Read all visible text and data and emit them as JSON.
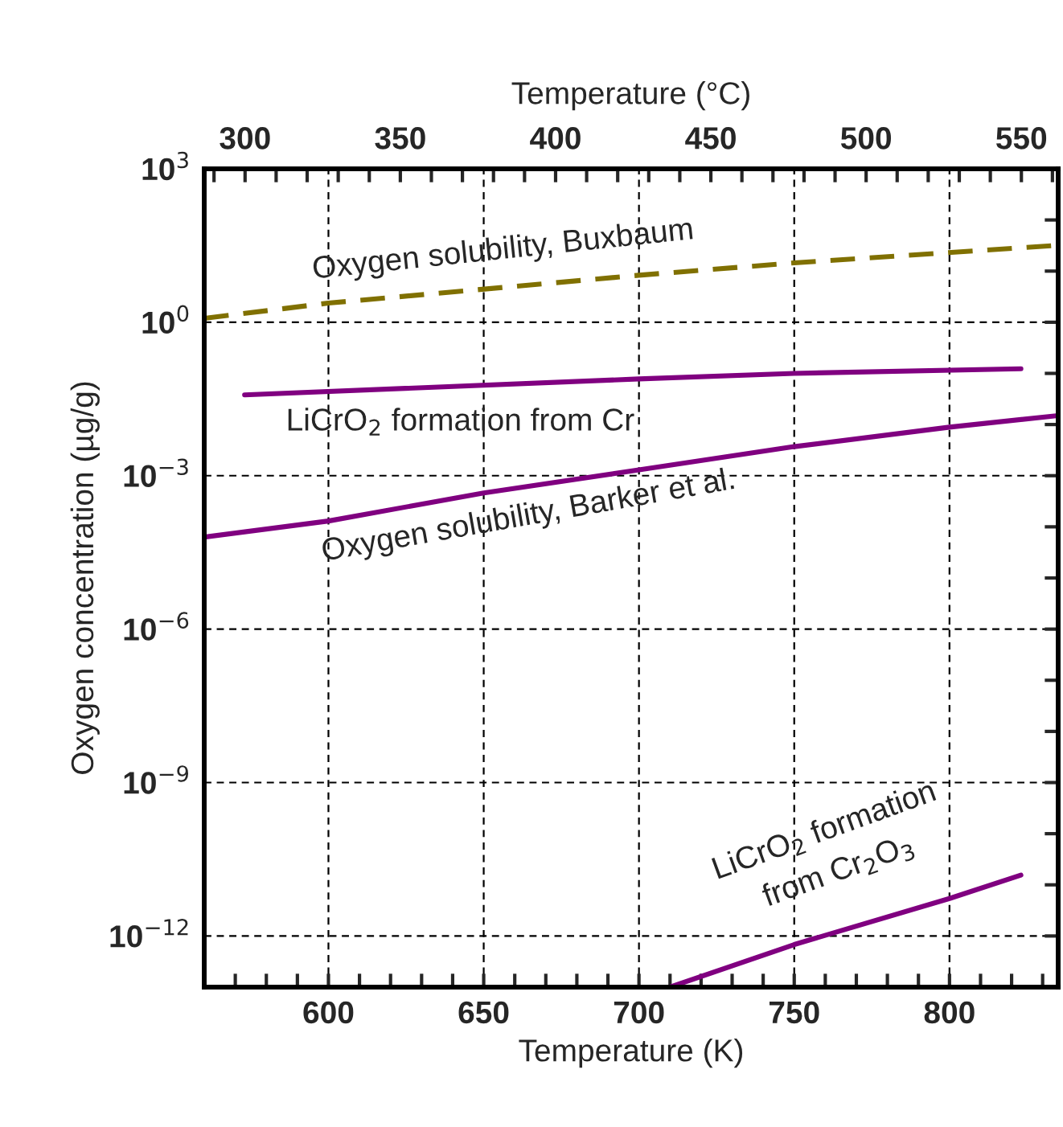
{
  "chart_data": {
    "type": "line",
    "xlabel": "Temperature (K)",
    "ylabel": "Oxygen concentration (µg/g)",
    "x2label": "Temperature (°C)",
    "log": "y",
    "grid": true,
    "legend": false,
    "xlim": [
      560,
      835
    ],
    "ylim": [
      1e-13,
      1000
    ],
    "xticks": [
      {
        "value": 570,
        "label": null
      },
      {
        "value": 580,
        "label": null
      },
      {
        "value": 590,
        "label": null
      },
      600,
      {
        "value": 610,
        "label": null
      },
      {
        "value": 620,
        "label": null
      },
      {
        "value": 630,
        "label": null
      },
      {
        "value": 640,
        "label": null
      },
      650,
      {
        "value": 660,
        "label": null
      },
      {
        "value": 670,
        "label": null
      },
      {
        "value": 680,
        "label": null
      },
      {
        "value": 690,
        "label": null
      },
      700,
      {
        "value": 710,
        "label": null
      },
      {
        "value": 720,
        "label": null
      },
      {
        "value": 730,
        "label": null
      },
      {
        "value": 740,
        "label": null
      },
      750,
      {
        "value": 760,
        "label": null
      },
      {
        "value": 770,
        "label": null
      },
      {
        "value": 780,
        "label": null
      },
      {
        "value": 790,
        "label": null
      },
      800,
      {
        "value": 810,
        "label": null
      },
      {
        "value": 820,
        "label": null
      },
      {
        "value": 830,
        "label": null
      }
    ],
    "x2lim": [
      286.85,
      561.85
    ],
    "x2ticks": [
      {
        "value": 290,
        "label": null
      },
      300,
      {
        "value": 310,
        "label": null
      },
      {
        "value": 320,
        "label": null
      },
      {
        "value": 330,
        "label": null
      },
      {
        "value": 340,
        "label": null
      },
      350,
      {
        "value": 360,
        "label": null
      },
      {
        "value": 370,
        "label": null
      },
      {
        "value": 380,
        "label": null
      },
      {
        "value": 390,
        "label": null
      },
      400,
      {
        "value": 410,
        "label": null
      },
      {
        "value": 420,
        "label": null
      },
      {
        "value": 430,
        "label": null
      },
      {
        "value": 440,
        "label": null
      },
      450,
      {
        "value": 460,
        "label": null
      },
      {
        "value": 470,
        "label": null
      },
      {
        "value": 480,
        "label": null
      },
      {
        "value": 490,
        "label": null
      },
      500,
      {
        "value": 510,
        "label": null
      },
      {
        "value": 520,
        "label": null
      },
      {
        "value": 530,
        "label": null
      },
      {
        "value": 540,
        "label": null
      },
      550,
      {
        "value": 560,
        "label": null
      }
    ],
    "yticks": [
      {
        "value": 1000,
        "label": "10$^{3}$"
      },
      {
        "value": 100,
        "label": null
      },
      {
        "value": 10,
        "label": null
      },
      {
        "value": 1,
        "label": "10$^{0}$"
      },
      {
        "value": 0.1,
        "label": null
      },
      {
        "value": 0.01,
        "label": null
      },
      {
        "value": 0.001,
        "label": "10$^{−3}$"
      },
      {
        "value": 0.0001,
        "label": null
      },
      {
        "value": 1e-05,
        "label": null
      },
      {
        "value": 1e-06,
        "label": "10$^{−6}$"
      },
      {
        "value": 1e-07,
        "label": null
      },
      {
        "value": 1e-08,
        "label": null
      },
      {
        "value": 1e-09,
        "label": "10$^{−9}$"
      },
      {
        "value": 1e-10,
        "label": null
      },
      {
        "value": 1e-11,
        "label": null
      },
      {
        "value": 1e-12,
        "label": "10$^{−12}$"
      }
    ],
    "series": [
      {
        "name": "Oxygen solubility, Buxbaum",
        "color": "#807000",
        "line_style": "dashed",
        "x": [
          560,
          600,
          700,
          750,
          835
        ],
        "values": [
          1.19,
          2.37,
          8.3,
          14.5,
          32
        ]
      },
      {
        "name": "LiCrO$_{2}$ formation from Cr",
        "color": "#800080",
        "line_style": "solid",
        "x": [
          573,
          700,
          750,
          823
        ],
        "values": [
          0.038,
          0.078,
          0.1,
          0.123
        ]
      },
      {
        "name": "Oxygen solubility, Barker et al.",
        "color": "#800080",
        "line_style": "solid",
        "x": [
          560,
          600,
          650,
          700,
          750,
          800,
          835
        ],
        "values": [
          6.3e-05,
          0.00013,
          0.00046,
          0.0013,
          0.0037,
          0.0089,
          0.015
        ]
      },
      {
        "name": "LiCrO$_{2}$ formation\nfrom Cr$_{2}$O$_{3}$",
        "color": "#800080",
        "line_style": "solid",
        "x": [
          710,
          750,
          800,
          823
        ],
        "values": [
          1e-13,
          6.8e-13,
          5.4e-12,
          1.55e-11
        ]
      }
    ]
  }
}
